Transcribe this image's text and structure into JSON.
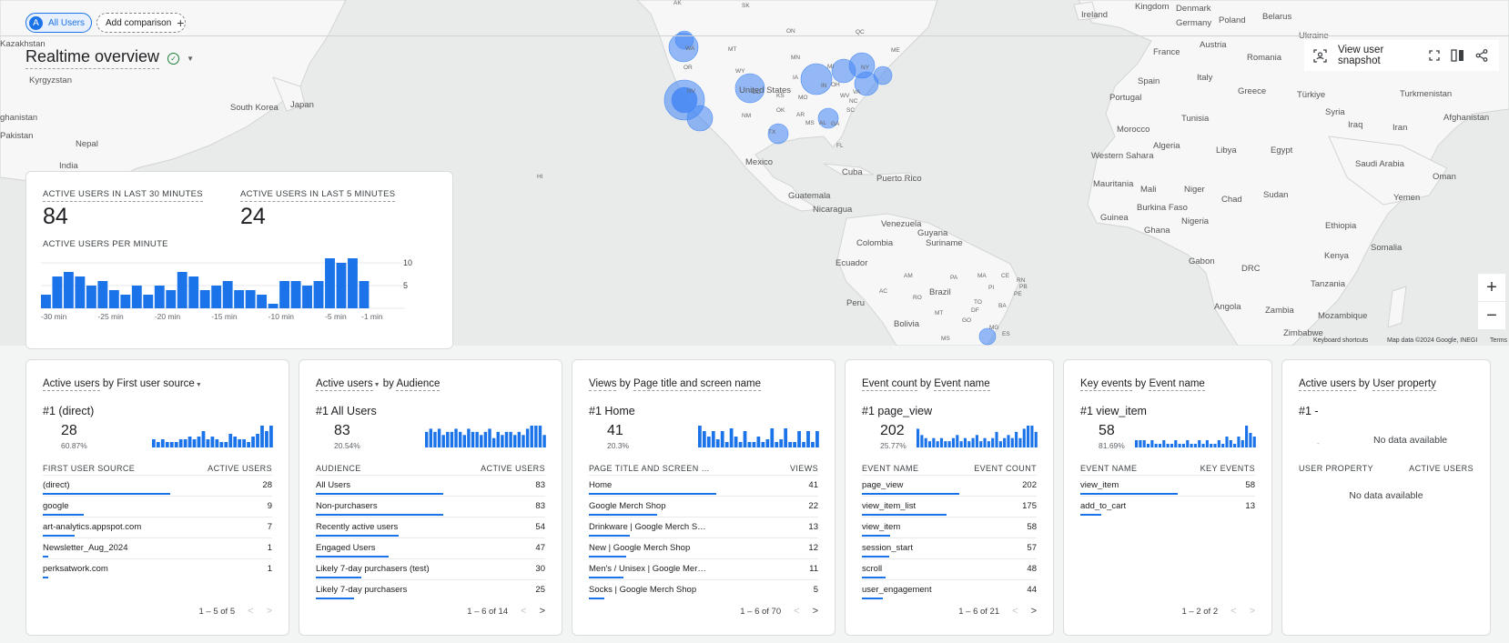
{
  "header": {
    "segment_chip": {
      "avatar": "A",
      "label": "All Users"
    },
    "add_comparison": "Add comparison",
    "title": "Realtime overview",
    "snapshot_label": "View user snapshot"
  },
  "map": {
    "labels": [
      {
        "text": "Ireland",
        "left": 1188,
        "top": 11
      },
      {
        "text": "Kingdom",
        "left": 1247,
        "top": 2
      },
      {
        "text": "Denmark",
        "left": 1292,
        "top": 4
      },
      {
        "text": "Germany",
        "left": 1292,
        "top": 20
      },
      {
        "text": "Poland",
        "left": 1339,
        "top": 17
      },
      {
        "text": "Belarus",
        "left": 1387,
        "top": 13
      },
      {
        "text": "France",
        "left": 1267,
        "top": 52
      },
      {
        "text": "Austria",
        "left": 1318,
        "top": 44
      },
      {
        "text": "Ukraine",
        "left": 1427,
        "top": 34
      },
      {
        "text": "Romania",
        "left": 1370,
        "top": 58
      },
      {
        "text": "Portugal",
        "left": 1219,
        "top": 102
      },
      {
        "text": "Spain",
        "left": 1250,
        "top": 84
      },
      {
        "text": "Italy",
        "left": 1315,
        "top": 80
      },
      {
        "text": "Greece",
        "left": 1360,
        "top": 95
      },
      {
        "text": "Türkiye",
        "left": 1425,
        "top": 99
      },
      {
        "text": "Turkmenistan",
        "left": 1538,
        "top": 98
      },
      {
        "text": "Tunisia",
        "left": 1298,
        "top": 125
      },
      {
        "text": "Morocco",
        "left": 1227,
        "top": 137
      },
      {
        "text": "Syria",
        "left": 1456,
        "top": 118
      },
      {
        "text": "Iraq",
        "left": 1481,
        "top": 132
      },
      {
        "text": "Iran",
        "left": 1530,
        "top": 135
      },
      {
        "text": "Afghanistan",
        "left": 1586,
        "top": 124
      },
      {
        "text": "Algeria",
        "left": 1267,
        "top": 155
      },
      {
        "text": "Libya",
        "left": 1336,
        "top": 160
      },
      {
        "text": "Egypt",
        "left": 1396,
        "top": 160
      },
      {
        "text": "Saudi Arabia",
        "left": 1489,
        "top": 175
      },
      {
        "text": "Western Sahara",
        "left": 1199,
        "top": 166
      },
      {
        "text": "Oman",
        "left": 1574,
        "top": 189
      },
      {
        "text": "Mauritania",
        "left": 1201,
        "top": 197
      },
      {
        "text": "Mali",
        "left": 1253,
        "top": 203
      },
      {
        "text": "Niger",
        "left": 1301,
        "top": 203
      },
      {
        "text": "Sudan",
        "left": 1388,
        "top": 209
      },
      {
        "text": "Chad",
        "left": 1342,
        "top": 214
      },
      {
        "text": "Yemen",
        "left": 1531,
        "top": 212
      },
      {
        "text": "Burkina Faso",
        "left": 1249,
        "top": 223
      },
      {
        "text": "Guinea",
        "left": 1209,
        "top": 234
      },
      {
        "text": "Ghana",
        "left": 1257,
        "top": 248
      },
      {
        "text": "Nigeria",
        "left": 1298,
        "top": 238
      },
      {
        "text": "Ethiopia",
        "left": 1456,
        "top": 243
      },
      {
        "text": "Somalia",
        "left": 1506,
        "top": 267
      },
      {
        "text": "Gabon",
        "left": 1306,
        "top": 282
      },
      {
        "text": "DRC",
        "left": 1364,
        "top": 290
      },
      {
        "text": "Kenya",
        "left": 1455,
        "top": 276
      },
      {
        "text": "Tanzania",
        "left": 1440,
        "top": 307
      },
      {
        "text": "Angola",
        "left": 1334,
        "top": 332
      },
      {
        "text": "Zambia",
        "left": 1390,
        "top": 336
      },
      {
        "text": "Mozambique",
        "left": 1448,
        "top": 342
      },
      {
        "text": "Zimbabwe",
        "left": 1410,
        "top": 361
      },
      {
        "text": "Kazakhstan",
        "left": 0,
        "top": 43
      },
      {
        "text": "Kyrgyzstan",
        "left": 32,
        "top": 83
      },
      {
        "text": "Japan",
        "left": 319,
        "top": 110
      },
      {
        "text": "South Korea",
        "left": 253,
        "top": 113
      },
      {
        "text": "ghanistan",
        "left": 0,
        "top": 124
      },
      {
        "text": "Pakistan",
        "left": 0,
        "top": 144
      },
      {
        "text": "Nepal",
        "left": 83,
        "top": 153
      },
      {
        "text": "India",
        "left": 65,
        "top": 177
      },
      {
        "text": "Mexico",
        "left": 819,
        "top": 173
      },
      {
        "text": "Cuba",
        "left": 925,
        "top": 184
      },
      {
        "text": "Puerto Rico",
        "left": 963,
        "top": 191
      },
      {
        "text": "Guatemala",
        "left": 866,
        "top": 210
      },
      {
        "text": "Nicaragua",
        "left": 893,
        "top": 225
      },
      {
        "text": "Venezuela",
        "left": 968,
        "top": 241
      },
      {
        "text": "Guyana",
        "left": 1008,
        "top": 251
      },
      {
        "text": "Colombia",
        "left": 941,
        "top": 262
      },
      {
        "text": "Suriname",
        "left": 1017,
        "top": 262
      },
      {
        "text": "Ecuador",
        "left": 918,
        "top": 284
      },
      {
        "text": "Brazil",
        "left": 1021,
        "top": 316
      },
      {
        "text": "Peru",
        "left": 930,
        "top": 328
      },
      {
        "text": "Bolivia",
        "left": 982,
        "top": 351
      },
      {
        "text": "United States",
        "left": 812,
        "top": 94
      }
    ],
    "state_labels": [
      {
        "text": "AK",
        "left": 740,
        "top": 0
      },
      {
        "text": "SK",
        "left": 815,
        "top": 3
      },
      {
        "text": "ON",
        "left": 864,
        "top": 31
      },
      {
        "text": "WA",
        "left": 753,
        "top": 50
      },
      {
        "text": "MT",
        "left": 800,
        "top": 51
      },
      {
        "text": "OR",
        "left": 751,
        "top": 71
      },
      {
        "text": "WY",
        "left": 808,
        "top": 75
      },
      {
        "text": "NV",
        "left": 755,
        "top": 97
      },
      {
        "text": "CO",
        "left": 826,
        "top": 98
      },
      {
        "text": "NM",
        "left": 815,
        "top": 124
      },
      {
        "text": "TX",
        "left": 844,
        "top": 142
      },
      {
        "text": "OK",
        "left": 853,
        "top": 118
      },
      {
        "text": "KS",
        "left": 853,
        "top": 102
      },
      {
        "text": "IA",
        "left": 871,
        "top": 82
      },
      {
        "text": "MN",
        "left": 869,
        "top": 60
      },
      {
        "text": "MO",
        "left": 877,
        "top": 104
      },
      {
        "text": "AR",
        "left": 875,
        "top": 123
      },
      {
        "text": "MS",
        "left": 885,
        "top": 132
      },
      {
        "text": "AL",
        "left": 900,
        "top": 132
      },
      {
        "text": "GA",
        "left": 913,
        "top": 133
      },
      {
        "text": "SC",
        "left": 930,
        "top": 118
      },
      {
        "text": "NC",
        "left": 933,
        "top": 108
      },
      {
        "text": "VA",
        "left": 937,
        "top": 98
      },
      {
        "text": "WV",
        "left": 923,
        "top": 102
      },
      {
        "text": "OH",
        "left": 913,
        "top": 90
      },
      {
        "text": "NY",
        "left": 946,
        "top": 71
      },
      {
        "text": "ME",
        "left": 979,
        "top": 52
      },
      {
        "text": "QC",
        "left": 940,
        "top": 32
      },
      {
        "text": "FL",
        "left": 919,
        "top": 157
      },
      {
        "text": "HI",
        "left": 590,
        "top": 191
      },
      {
        "text": "AM",
        "left": 993,
        "top": 300
      },
      {
        "text": "PA",
        "left": 1044,
        "top": 302
      },
      {
        "text": "MA",
        "left": 1074,
        "top": 300
      },
      {
        "text": "CE",
        "left": 1100,
        "top": 300
      },
      {
        "text": "RN",
        "left": 1117,
        "top": 305
      },
      {
        "text": "PB",
        "left": 1120,
        "top": 312
      },
      {
        "text": "PI",
        "left": 1086,
        "top": 313
      },
      {
        "text": "PE",
        "left": 1114,
        "top": 320
      },
      {
        "text": "AC",
        "left": 966,
        "top": 317
      },
      {
        "text": "RO",
        "left": 1003,
        "top": 324
      },
      {
        "text": "TO",
        "left": 1070,
        "top": 329
      },
      {
        "text": "BA",
        "left": 1097,
        "top": 333
      },
      {
        "text": "MT",
        "left": 1027,
        "top": 341
      },
      {
        "text": "GO",
        "left": 1057,
        "top": 349
      },
      {
        "text": "MG",
        "left": 1087,
        "top": 357
      },
      {
        "text": "ES",
        "left": 1101,
        "top": 364
      },
      {
        "text": "MS",
        "left": 1034,
        "top": 369
      },
      {
        "text": "DF",
        "left": 1067,
        "top": 338
      },
      {
        "text": "IN",
        "left": 902,
        "top": 91
      },
      {
        "text": "MI",
        "left": 909,
        "top": 70
      }
    ],
    "footer": {
      "shortcuts": "Keyboard shortcuts",
      "attribution": "Map data ©2024 Google, INEGI",
      "terms": "Terms"
    }
  },
  "summary": {
    "label_30": "ACTIVE USERS IN LAST 30 MINUTES",
    "value_30": "84",
    "label_5": "ACTIVE USERS IN LAST 5 MINUTES",
    "value_5": "24",
    "per_minute_label": "ACTIVE USERS PER MINUTE",
    "chart_data": {
      "type": "bar",
      "values": [
        3,
        7,
        8,
        7,
        5,
        6,
        4,
        3,
        5,
        3,
        5,
        4,
        8,
        7,
        4,
        5,
        6,
        4,
        4,
        3,
        1,
        6,
        6,
        5,
        6,
        11,
        10,
        11,
        6
      ],
      "x_tick_labels": [
        "-30 min",
        "-25 min",
        "-20 min",
        "-15 min",
        "-10 min",
        "-5 min",
        "-1 min"
      ],
      "y_tick_labels": [
        "10",
        "5"
      ],
      "ylim": [
        0,
        12
      ]
    }
  },
  "cards": [
    {
      "title_parts": [
        {
          "t": "Active users",
          "u": true
        },
        {
          "t": " by ",
          "u": false
        },
        {
          "t": "First user source",
          "u": false
        }
      ],
      "title_dropdown_after": 2,
      "top": {
        "rank": "#1",
        "name": "(direct)",
        "value": "28",
        "pct": "60.87%"
      },
      "spark": [
        3,
        2,
        3,
        2,
        2,
        2,
        3,
        3,
        4,
        3,
        4,
        6,
        3,
        4,
        3,
        2,
        2,
        5,
        4,
        3,
        3,
        2,
        4,
        5,
        8,
        6,
        8
      ],
      "col_left": "FIRST USER SOURCE",
      "col_right": "ACTIVE USERS",
      "rows": [
        {
          "name": "(direct)",
          "value": "28",
          "bar": 1.0
        },
        {
          "name": "google",
          "value": "9",
          "bar": 0.32
        },
        {
          "name": "art-analytics.appspot.com",
          "value": "7",
          "bar": 0.25
        },
        {
          "name": "Newsletter_Aug_2024",
          "value": "1",
          "bar": 0.04
        },
        {
          "name": "perksatwork.com",
          "value": "1",
          "bar": 0.04
        }
      ],
      "pager": "1 – 5 of 5",
      "prev_enabled": false,
      "next_enabled": false
    },
    {
      "title_parts": [
        {
          "t": "Active users",
          "u": true
        },
        {
          "t": " by ",
          "u": false
        },
        {
          "t": "Audience",
          "u": true
        }
      ],
      "title_dropdown_after": 0,
      "top": {
        "rank": "#1",
        "name": "All Users",
        "value": "83",
        "pct": "20.54%"
      },
      "spark": [
        5,
        6,
        5,
        6,
        4,
        5,
        5,
        6,
        5,
        4,
        6,
        5,
        5,
        4,
        5,
        6,
        3,
        5,
        4,
        5,
        5,
        4,
        5,
        4,
        6,
        7,
        7,
        7,
        4
      ],
      "col_left": "AUDIENCE",
      "col_right": "ACTIVE USERS",
      "rows": [
        {
          "name": "All Users",
          "value": "83",
          "bar": 1.0
        },
        {
          "name": "Non-purchasers",
          "value": "83",
          "bar": 1.0
        },
        {
          "name": "Recently active users",
          "value": "54",
          "bar": 0.65
        },
        {
          "name": "Engaged Users",
          "value": "47",
          "bar": 0.57
        },
        {
          "name": "Likely 7-day purchasers (test)",
          "value": "30",
          "bar": 0.36
        },
        {
          "name": "Likely 7-day purchasers",
          "value": "25",
          "bar": 0.3
        }
      ],
      "pager": "1 – 6 of 14",
      "prev_enabled": false,
      "next_enabled": true
    },
    {
      "title_parts": [
        {
          "t": "Views",
          "u": true
        },
        {
          "t": " by ",
          "u": false
        },
        {
          "t": "Page title and screen name",
          "u": true
        }
      ],
      "title_dropdown_after": -1,
      "top": {
        "rank": "#1",
        "name": "Home",
        "value": "41",
        "pct": "20.3%"
      },
      "spark": [
        8,
        6,
        4,
        6,
        3,
        6,
        2,
        7,
        4,
        2,
        6,
        2,
        2,
        4,
        2,
        3,
        7,
        2,
        3,
        7,
        2,
        2,
        6,
        2,
        6,
        2,
        6
      ],
      "col_left": "PAGE TITLE AND SCREEN …",
      "col_right": "VIEWS",
      "rows": [
        {
          "name": "Home",
          "value": "41",
          "bar": 1.0
        },
        {
          "name": "Google Merch Shop",
          "value": "22",
          "bar": 0.54
        },
        {
          "name": "Drinkware | Google Merch S…",
          "value": "13",
          "bar": 0.32
        },
        {
          "name": "New | Google Merch Shop",
          "value": "12",
          "bar": 0.29
        },
        {
          "name": "Men's / Unisex | Google Mer…",
          "value": "11",
          "bar": 0.27
        },
        {
          "name": "Socks | Google Merch Shop",
          "value": "5",
          "bar": 0.12
        }
      ],
      "pager": "1 – 6 of 70",
      "prev_enabled": false,
      "next_enabled": true
    },
    {
      "title_parts": [
        {
          "t": "Event count",
          "u": true
        },
        {
          "t": " by ",
          "u": false
        },
        {
          "t": "Event name",
          "u": true
        }
      ],
      "title_dropdown_after": -1,
      "top": {
        "rank": "#1",
        "name": "page_view",
        "value": "202",
        "pct": "25.77%"
      },
      "spark": [
        6,
        4,
        3,
        2,
        3,
        2,
        3,
        2,
        2,
        3,
        4,
        2,
        3,
        2,
        3,
        4,
        2,
        3,
        2,
        3,
        5,
        2,
        3,
        4,
        3,
        5,
        3,
        6,
        7,
        7,
        5
      ],
      "col_left": "EVENT NAME",
      "col_right": "EVENT COUNT",
      "rows": [
        {
          "name": "page_view",
          "value": "202",
          "bar": 1.0
        },
        {
          "name": "view_item_list",
          "value": "175",
          "bar": 0.87
        },
        {
          "name": "view_item",
          "value": "58",
          "bar": 0.29
        },
        {
          "name": "session_start",
          "value": "57",
          "bar": 0.28
        },
        {
          "name": "scroll",
          "value": "48",
          "bar": 0.24
        },
        {
          "name": "user_engagement",
          "value": "44",
          "bar": 0.22
        }
      ],
      "pager": "1 – 6 of 21",
      "prev_enabled": false,
      "next_enabled": true
    },
    {
      "title_parts": [
        {
          "t": "Key events",
          "u": true
        },
        {
          "t": " by ",
          "u": false
        },
        {
          "t": "Event name",
          "u": true
        }
      ],
      "title_dropdown_after": -1,
      "top": {
        "rank": "#1",
        "name": "view_item",
        "value": "58",
        "pct": "81.69%"
      },
      "spark": [
        2,
        2,
        2,
        1,
        2,
        1,
        1,
        2,
        1,
        1,
        2,
        1,
        1,
        2,
        1,
        1,
        2,
        1,
        2,
        1,
        1,
        2,
        1,
        3,
        2,
        1,
        3,
        2,
        6,
        4,
        3
      ],
      "col_left": "EVENT NAME",
      "col_right": "KEY EVENTS",
      "rows": [
        {
          "name": "view_item",
          "value": "58",
          "bar": 1.0
        },
        {
          "name": "add_to_cart",
          "value": "13",
          "bar": 0.22
        }
      ],
      "pager": "1 – 2 of 2",
      "prev_enabled": false,
      "next_enabled": false
    },
    {
      "title_parts": [
        {
          "t": "Active users",
          "u": true
        },
        {
          "t": " by ",
          "u": false
        },
        {
          "t": "User property",
          "u": true
        }
      ],
      "title_dropdown_after": -1,
      "top": {
        "rank": "#1",
        "name": "-",
        "value": "",
        "pct": ""
      },
      "no_data_top": "No data available",
      "spark": [],
      "col_left": "USER PROPERTY",
      "col_right": "ACTIVE USERS",
      "rows": [],
      "no_data_table": "No data available",
      "pager": "",
      "prev_enabled": false,
      "next_enabled": false
    }
  ]
}
